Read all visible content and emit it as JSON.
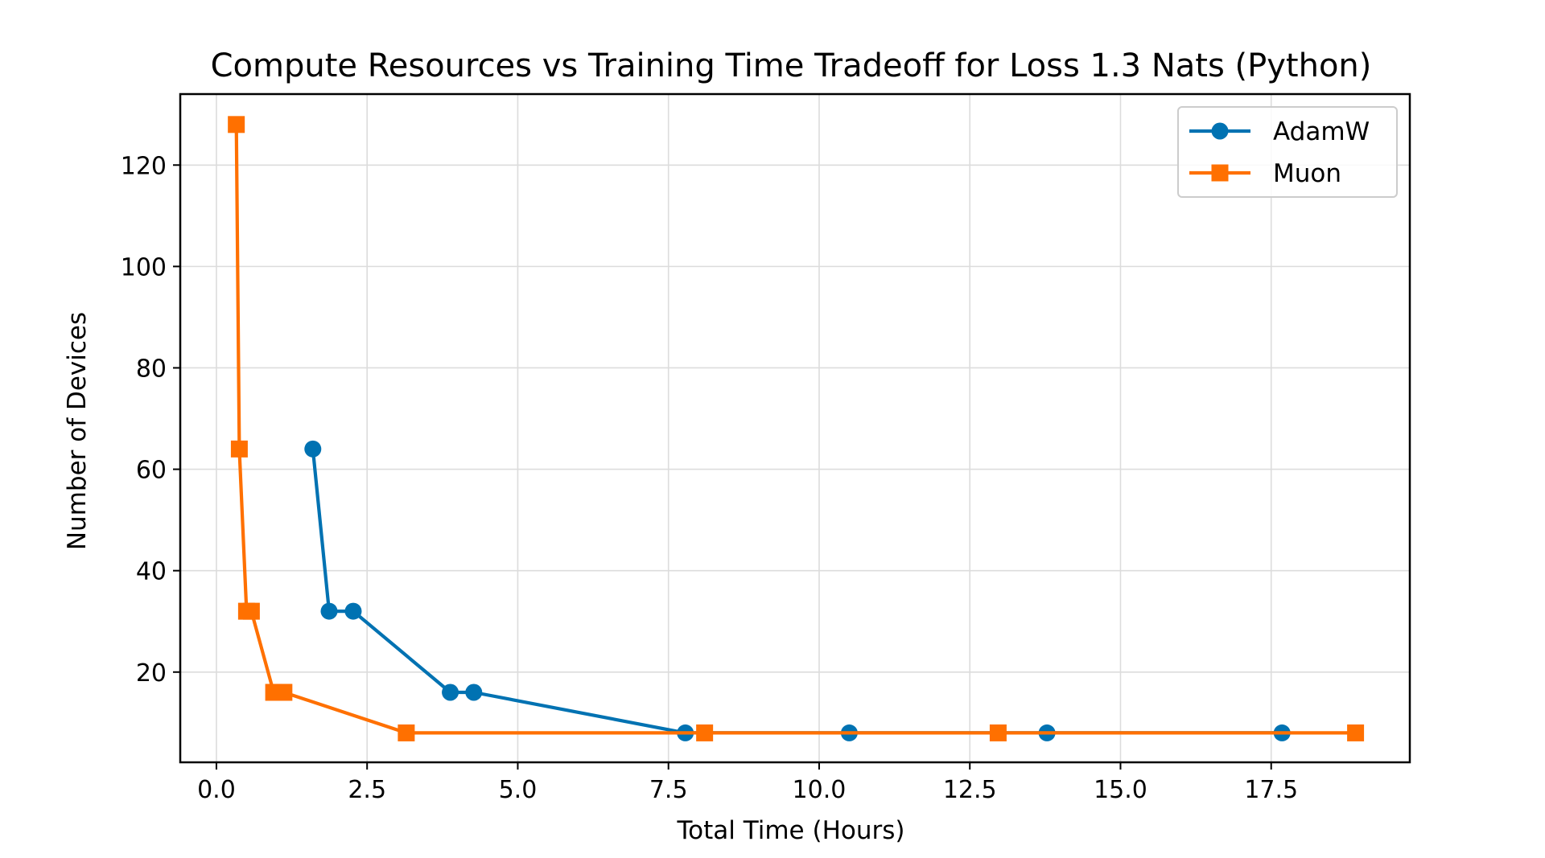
{
  "chart_data": {
    "type": "line",
    "title": "Compute Resources vs Training Time Tradeoff for Loss 1.3 Nats (Python)",
    "xlabel": "Total Time (Hours)",
    "ylabel": "Number of Devices",
    "xlim": [
      -0.6,
      19.8
    ],
    "ylim": [
      2.2,
      134
    ],
    "xticks": [
      0.0,
      2.5,
      5.0,
      7.5,
      10.0,
      12.5,
      15.0,
      17.5
    ],
    "xtick_labels": [
      "0.0",
      "2.5",
      "5.0",
      "7.5",
      "10.0",
      "12.5",
      "15.0",
      "17.5"
    ],
    "yticks": [
      20,
      40,
      60,
      80,
      100,
      120
    ],
    "ytick_labels": [
      "20",
      "40",
      "60",
      "80",
      "100",
      "120"
    ],
    "grid": true,
    "legend_position": "top-right",
    "series": [
      {
        "name": "AdamW",
        "color": "#0072b2",
        "marker": "circle",
        "points": [
          {
            "x": 1.6,
            "y": 64
          },
          {
            "x": 1.87,
            "y": 32
          },
          {
            "x": 2.27,
            "y": 32
          },
          {
            "x": 3.88,
            "y": 16
          },
          {
            "x": 4.27,
            "y": 16
          },
          {
            "x": 7.78,
            "y": 8
          },
          {
            "x": 10.5,
            "y": 8
          },
          {
            "x": 13.78,
            "y": 8
          },
          {
            "x": 17.68,
            "y": 8
          }
        ]
      },
      {
        "name": "Muon",
        "color": "#ff7000",
        "marker": "square",
        "points": [
          {
            "x": 0.33,
            "y": 128
          },
          {
            "x": 0.38,
            "y": 64
          },
          {
            "x": 0.5,
            "y": 32
          },
          {
            "x": 0.58,
            "y": 32
          },
          {
            "x": 0.95,
            "y": 16
          },
          {
            "x": 1.12,
            "y": 16
          },
          {
            "x": 3.15,
            "y": 8
          },
          {
            "x": 8.1,
            "y": 8
          },
          {
            "x": 12.97,
            "y": 8
          },
          {
            "x": 18.9,
            "y": 8
          }
        ]
      }
    ]
  }
}
